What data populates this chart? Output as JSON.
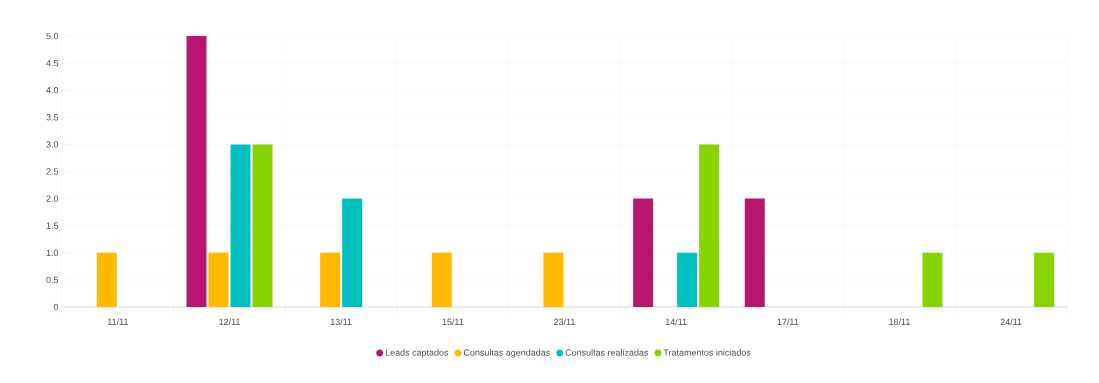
{
  "chart_data": {
    "type": "bar",
    "categories": [
      "11/11",
      "12/11",
      "13/11",
      "15/11",
      "23/11",
      "14/11",
      "17/11",
      "18/11",
      "24/11"
    ],
    "series": [
      {
        "name": "Leads captados",
        "color": "#b5176f",
        "values": [
          0,
          5,
          0,
          0,
          0,
          2,
          2,
          0,
          0
        ]
      },
      {
        "name": "Consultas agendadas",
        "color": "#ffb900",
        "values": [
          1,
          1,
          1,
          1,
          1,
          0,
          0,
          0,
          0
        ]
      },
      {
        "name": "Consultas realizadas",
        "color": "#00c1bd",
        "values": [
          0,
          3,
          2,
          0,
          0,
          1,
          0,
          0,
          0
        ]
      },
      {
        "name": "Tratamentos iniciados",
        "color": "#88d400",
        "values": [
          0,
          3,
          0,
          0,
          0,
          3,
          0,
          1,
          1
        ]
      }
    ],
    "ylim": [
      0,
      5
    ],
    "yticks": [
      0,
      {
        "value": 0.5,
        "label": "0.5"
      },
      {
        "value": 1,
        "label": "1.0"
      },
      {
        "value": 1.5,
        "label": "1.5"
      },
      {
        "value": 2,
        "label": "2.0"
      },
      {
        "value": 2.5,
        "label": "2.5"
      },
      {
        "value": 3,
        "label": "3.0"
      },
      {
        "value": 3.5,
        "label": "3.5"
      },
      {
        "value": 4,
        "label": "4.0"
      },
      {
        "value": 4.5,
        "label": "4.5"
      },
      {
        "value": 5,
        "label": "5.0"
      }
    ],
    "grid": true,
    "legend": "bottom"
  }
}
